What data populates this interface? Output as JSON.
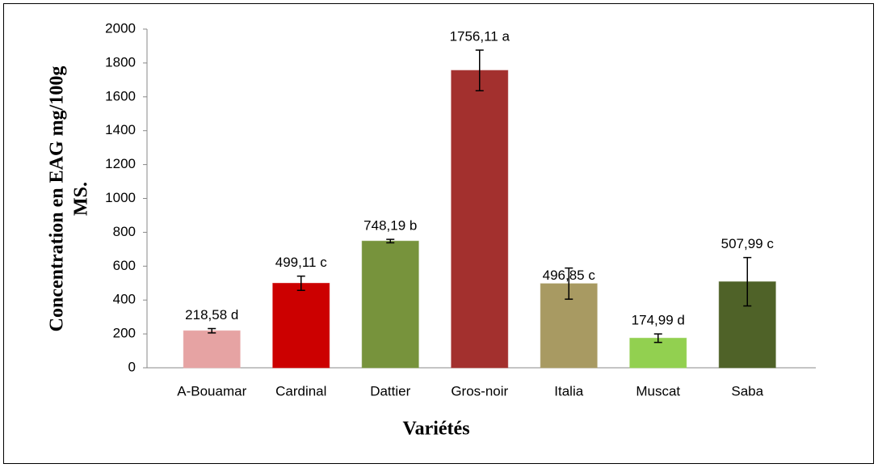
{
  "chart_data": {
    "type": "bar",
    "x_label": "Variétés",
    "y_label": [
      "Concentration en EAG mg/100g",
      "MS."
    ],
    "categories": [
      "A-Bouamar",
      "Cardinal",
      "Dattier",
      "Gros-noir",
      "Italia",
      "Muscat",
      "Saba"
    ],
    "values": [
      218.58,
      499.11,
      748.19,
      1756.11,
      496.85,
      174.99,
      507.99
    ],
    "value_labels": [
      "218,58 d",
      "499,11 c",
      "748,19 b",
      "1756,11 a",
      "496,85 c",
      "174,99 d",
      "507,99 c"
    ],
    "errors": [
      13,
      42,
      10,
      120,
      92,
      25,
      143
    ],
    "colors": [
      "#e6a3a3",
      "#cc0000",
      "#77933c",
      "#a3302e",
      "#a89a62",
      "#92d050",
      "#4f6228"
    ],
    "ylim": [
      0,
      2000
    ],
    "yticks": [
      0,
      200,
      400,
      600,
      800,
      1000,
      1200,
      1400,
      1600,
      1800,
      2000
    ],
    "grid": false
  }
}
